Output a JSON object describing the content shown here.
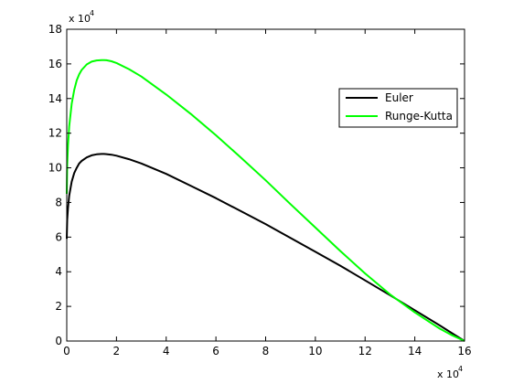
{
  "chart_data": {
    "type": "line",
    "title": "",
    "xlabel": "",
    "ylabel": "",
    "xlim": [
      0,
      160000
    ],
    "ylim": [
      0,
      180000
    ],
    "x_ticks": [
      0,
      20000,
      40000,
      60000,
      80000,
      100000,
      120000,
      140000,
      160000
    ],
    "y_ticks": [
      0,
      20000,
      40000,
      60000,
      80000,
      100000,
      120000,
      140000,
      160000,
      180000
    ],
    "x_tick_labels": [
      "0",
      "2",
      "4",
      "6",
      "8",
      "10",
      "12",
      "14",
      "16"
    ],
    "y_tick_labels": [
      "0",
      "2",
      "4",
      "6",
      "8",
      "10",
      "12",
      "14",
      "16",
      "18"
    ],
    "x_multiplier": {
      "base": "x 10",
      "exponent": "4"
    },
    "y_multiplier": {
      "base": "x 10",
      "exponent": "4"
    },
    "grid": false,
    "legend_position": "top-right",
    "series": [
      {
        "name": "Euler",
        "color": "#000000",
        "x": [
          0,
          200,
          500,
          1000,
          2000,
          3000,
          4000,
          5000,
          6000,
          8000,
          10000,
          12000,
          14000,
          15000,
          16000,
          18000,
          20000,
          25000,
          30000,
          40000,
          50000,
          60000,
          70000,
          80000,
          90000,
          100000,
          110000,
          120000,
          130000,
          140000,
          150000,
          155000,
          160000
        ],
        "y": [
          59000,
          70000,
          77000,
          84000,
          92000,
          97000,
          100000,
          102500,
          104000,
          106000,
          107200,
          107800,
          108000,
          108000,
          107900,
          107600,
          107000,
          105000,
          102500,
          96500,
          89500,
          82500,
          75000,
          67500,
          59500,
          51500,
          43500,
          35000,
          26500,
          17800,
          9000,
          4500,
          0
        ]
      },
      {
        "name": "Runge-Kutta",
        "color": "#00ff00",
        "x": [
          0,
          200,
          500,
          1000,
          2000,
          3000,
          4000,
          5000,
          6000,
          8000,
          10000,
          12000,
          14000,
          15000,
          16000,
          18000,
          20000,
          25000,
          30000,
          40000,
          50000,
          60000,
          70000,
          80000,
          90000,
          100000,
          110000,
          120000,
          130000,
          140000,
          150000,
          155000,
          160000
        ],
        "y": [
          85000,
          102000,
          113000,
          124000,
          137000,
          145000,
          150500,
          154000,
          156500,
          159700,
          161300,
          162000,
          162200,
          162200,
          162100,
          161500,
          160500,
          157000,
          152700,
          142300,
          131000,
          118800,
          106000,
          92800,
          79000,
          65500,
          52000,
          39000,
          27000,
          16500,
          7200,
          3300,
          0
        ]
      }
    ]
  }
}
